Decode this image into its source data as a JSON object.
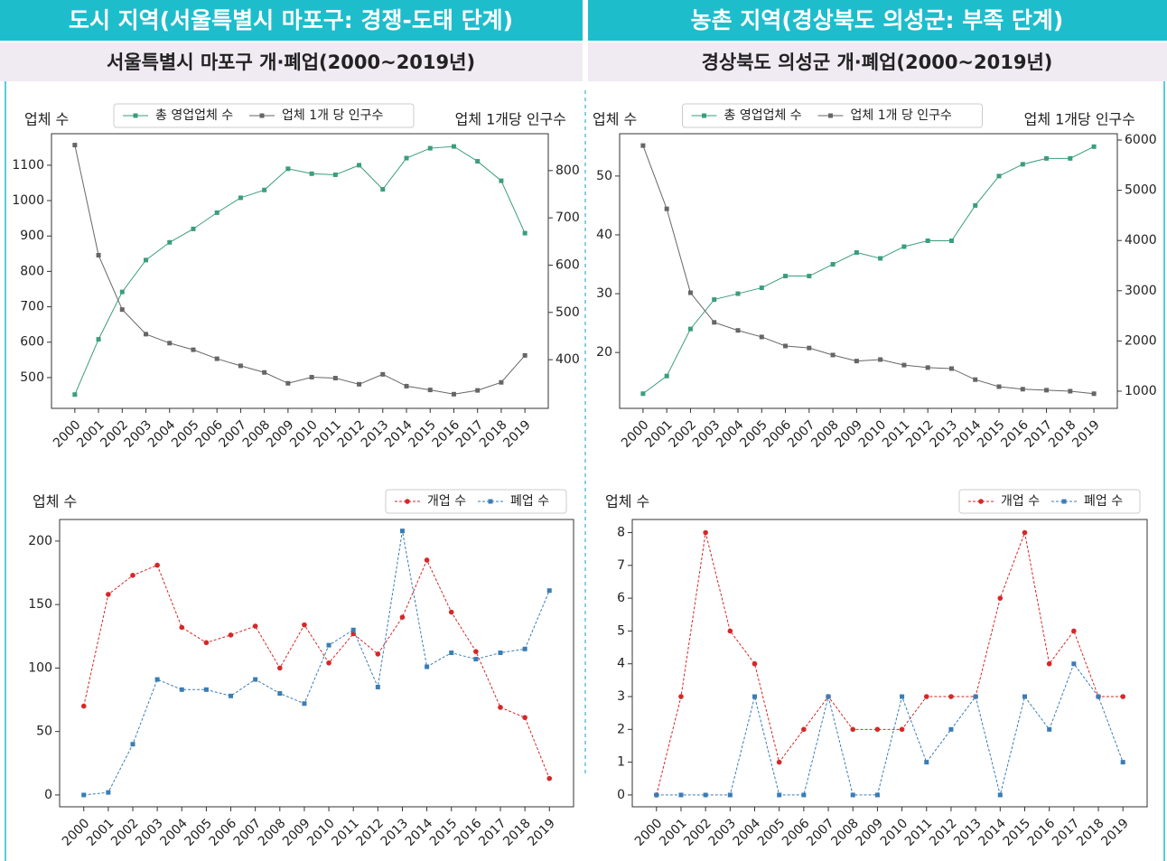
{
  "panels": [
    {
      "header": "도시 지역(서울특별시 마포구: 경쟁-도태 단계)",
      "subheader": "서울특별시 마포구 개·폐업(2000~2019년)"
    },
    {
      "header": "농촌 지역(경상북도 의성군: 부족 단계)",
      "subheader": "경상북도 의성군 개·폐업(2000~2019년)"
    }
  ],
  "chart_data": [
    {
      "type": "line",
      "ylabel": "업체 수",
      "y2label": "업체 1개당 인구수",
      "legend": "upper center",
      "categories": [
        "2000",
        "2001",
        "2002",
        "2003",
        "2004",
        "2005",
        "2006",
        "2007",
        "2008",
        "2009",
        "2010",
        "2011",
        "2012",
        "2013",
        "2014",
        "2015",
        "2016",
        "2017",
        "2018",
        "2019"
      ],
      "ylim": [
        413,
        1189
      ],
      "yticks": [
        500,
        600,
        700,
        800,
        900,
        1000,
        1100
      ],
      "y2lim": [
        297,
        878
      ],
      "y2ticks": [
        400,
        500,
        600,
        700,
        800
      ],
      "series": [
        {
          "name": "총 영업업체 수",
          "color": "#3a9e7a",
          "marker": "square",
          "linestyle": "solid",
          "values": [
            452,
            608,
            742,
            832,
            882,
            920,
            966,
            1008,
            1030,
            1090,
            1076,
            1073,
            1100,
            1032,
            1120,
            1148,
            1153,
            1111,
            1056,
            908
          ]
        },
        {
          "name": "업체 1개 당 인구수",
          "color": "#666666",
          "marker": "square",
          "linestyle": "solid",
          "axis": "y2",
          "values": [
            854,
            621,
            506,
            454,
            435,
            421,
            402,
            387,
            373,
            350,
            363,
            361,
            348,
            369,
            344,
            336,
            327,
            335,
            352,
            409
          ]
        }
      ]
    },
    {
      "type": "line",
      "ylabel": "업체 수",
      "y2label": "업체 1개당 인구수",
      "legend": "upper center",
      "categories": [
        "2000",
        "2001",
        "2002",
        "2003",
        "2004",
        "2005",
        "2006",
        "2007",
        "2008",
        "2009",
        "2010",
        "2011",
        "2012",
        "2013",
        "2014",
        "2015",
        "2016",
        "2017",
        "2018",
        "2019"
      ],
      "ylim": [
        10.5,
        57.2
      ],
      "yticks": [
        20,
        30,
        40,
        50
      ],
      "y2lim": [
        658,
        6126
      ],
      "y2ticks": [
        1000,
        2000,
        3000,
        4000,
        5000,
        6000
      ],
      "series": [
        {
          "name": "총 영업업체 수",
          "color": "#3a9e7a",
          "marker": "square",
          "linestyle": "solid",
          "values": [
            13,
            16,
            24,
            29,
            30,
            31,
            33,
            33,
            35,
            37,
            36,
            38,
            39,
            39,
            45,
            50,
            52,
            53,
            53,
            55
          ]
        },
        {
          "name": "업체 1개 당 인구수",
          "color": "#666666",
          "marker": "square",
          "linestyle": "solid",
          "axis": "y2",
          "values": [
            5890,
            4630,
            2960,
            2370,
            2210,
            2080,
            1900,
            1860,
            1720,
            1600,
            1630,
            1520,
            1470,
            1450,
            1230,
            1090,
            1040,
            1020,
            1000,
            950
          ]
        }
      ]
    },
    {
      "type": "line",
      "ylabel": "업체 수",
      "legend": "upper right",
      "categories": [
        "2000",
        "2001",
        "2002",
        "2003",
        "2004",
        "2005",
        "2006",
        "2007",
        "2008",
        "2009",
        "2010",
        "2011",
        "2012",
        "2013",
        "2014",
        "2015",
        "2016",
        "2017",
        "2018",
        "2019"
      ],
      "ylim": [
        -9.3,
        217
      ],
      "yticks": [
        0,
        50,
        100,
        150,
        200
      ],
      "series": [
        {
          "name": "개업 수",
          "color": "#d62728",
          "marker": "circle",
          "linestyle": "dashed",
          "values": [
            70,
            158,
            173,
            181,
            132,
            120,
            126,
            133,
            100,
            134,
            104,
            127,
            111,
            140,
            185,
            144,
            113,
            69,
            61,
            13
          ]
        },
        {
          "name": "폐업 수",
          "color": "#3a7db5",
          "marker": "square",
          "linestyle": "dashed",
          "values": [
            0,
            2,
            40,
            91,
            83,
            83,
            78,
            91,
            80,
            72,
            118,
            130,
            85,
            208,
            101,
            112,
            107,
            112,
            115,
            161
          ]
        }
      ]
    },
    {
      "type": "line",
      "ylabel": "업체 수",
      "legend": "upper right",
      "categories": [
        "2000",
        "2001",
        "2002",
        "2003",
        "2004",
        "2005",
        "2006",
        "2007",
        "2008",
        "2009",
        "2010",
        "2011",
        "2012",
        "2013",
        "2014",
        "2015",
        "2016",
        "2017",
        "2018",
        "2019"
      ],
      "ylim": [
        -0.36,
        8.4
      ],
      "yticks": [
        0,
        1,
        2,
        3,
        4,
        5,
        6,
        7,
        8
      ],
      "series": [
        {
          "name": "개업 수",
          "color": "#d62728",
          "marker": "circle",
          "linestyle": "dashed",
          "values": [
            0,
            3,
            8,
            5,
            4,
            1,
            2,
            3,
            2,
            2,
            2,
            3,
            3,
            3,
            6,
            8,
            4,
            5,
            3,
            3
          ]
        },
        {
          "name": "폐업 수",
          "color": "#3a7db5",
          "marker": "square",
          "linestyle": "dashed",
          "values": [
            0,
            0,
            0,
            0,
            3,
            0,
            0,
            3,
            0,
            0,
            3,
            1,
            2,
            3,
            0,
            3,
            2,
            4,
            3,
            1
          ]
        }
      ]
    }
  ]
}
